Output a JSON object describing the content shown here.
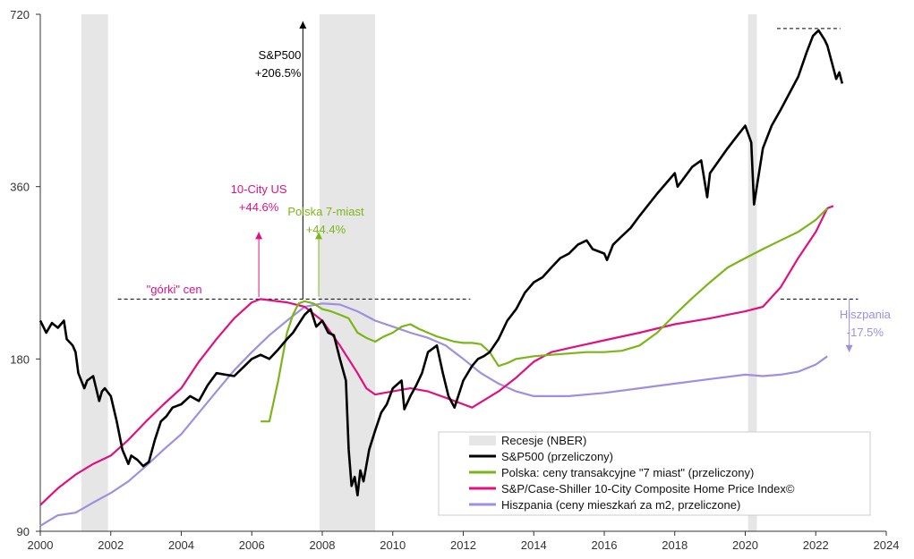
{
  "colors": {
    "sp500": "#000000",
    "poland": "#7cb518",
    "cs10": "#e0117f",
    "spain": "#a08fe0",
    "recession": "#e6e6e6",
    "axis": "#333333"
  },
  "chart_data": {
    "type": "line",
    "x_axis": {
      "range": [
        2000,
        2024
      ],
      "ticks": [
        "2000",
        "2002",
        "2004",
        "2006",
        "2008",
        "2010",
        "2012",
        "2014",
        "2016",
        "2018",
        "2020",
        "2022",
        "2024"
      ]
    },
    "y_axis": {
      "scale": "log",
      "range": [
        90,
        720
      ],
      "ticks": [
        "90",
        "180",
        "360",
        "720"
      ]
    },
    "grid": false,
    "legend_position": "bottom-right",
    "recessions": [
      {
        "start": 2001.17,
        "end": 2001.92
      },
      {
        "start": 2007.92,
        "end": 2009.5
      },
      {
        "start": 2020.08,
        "end": 2020.33
      }
    ],
    "series": [
      {
        "name": "S&P500 (przeliczony)",
        "color": "#000000",
        "x": [
          2000.0,
          2000.17,
          2000.33,
          2000.5,
          2000.67,
          2000.75,
          2000.92,
          2001.0,
          2001.08,
          2001.25,
          2001.33,
          2001.5,
          2001.67,
          2001.75,
          2001.83,
          2002.0,
          2002.17,
          2002.33,
          2002.5,
          2002.58,
          2002.75,
          2002.92,
          2003.08,
          2003.25,
          2003.42,
          2003.58,
          2003.75,
          2004.0,
          2004.25,
          2004.5,
          2004.75,
          2005.0,
          2005.5,
          2006.0,
          2006.25,
          2006.5,
          2006.75,
          2007.0,
          2007.17,
          2007.5,
          2007.67,
          2007.83,
          2008.0,
          2008.17,
          2008.33,
          2008.5,
          2008.67,
          2008.75,
          2008.83,
          2008.92,
          2009.0,
          2009.08,
          2009.17,
          2009.33,
          2009.5,
          2009.67,
          2009.83,
          2010.0,
          2010.25,
          2010.33,
          2010.5,
          2010.67,
          2010.83,
          2011.0,
          2011.25,
          2011.42,
          2011.58,
          2011.75,
          2012.0,
          2012.25,
          2012.42,
          2012.58,
          2012.75,
          2013.0,
          2013.25,
          2013.5,
          2013.75,
          2014.0,
          2014.25,
          2014.5,
          2014.75,
          2015.0,
          2015.25,
          2015.5,
          2015.67,
          2016.0,
          2016.08,
          2016.25,
          2016.5,
          2016.75,
          2017.0,
          2017.5,
          2018.0,
          2018.08,
          2018.5,
          2018.75,
          2018.92,
          2019.0,
          2019.5,
          2019.75,
          2020.0,
          2020.17,
          2020.25,
          2020.5,
          2020.75,
          2021.0,
          2021.5,
          2021.75,
          2021.92,
          2022.08,
          2022.25,
          2022.33,
          2022.5,
          2022.58,
          2022.67,
          2022.75
        ],
        "values": [
          210,
          200,
          208,
          204,
          210,
          195,
          190,
          185,
          170,
          160,
          165,
          168,
          152,
          158,
          160,
          155,
          140,
          125,
          118,
          122,
          120,
          117,
          119,
          130,
          140,
          143,
          148,
          150,
          155,
          152,
          162,
          170,
          168,
          180,
          183,
          180,
          187,
          195,
          200,
          215,
          220,
          205,
          210,
          200,
          198,
          180,
          165,
          125,
          108,
          112,
          104,
          115,
          110,
          125,
          135,
          145,
          150,
          160,
          165,
          147,
          155,
          162,
          170,
          185,
          190,
          170,
          155,
          148,
          165,
          175,
          180,
          182,
          185,
          195,
          210,
          220,
          235,
          245,
          250,
          260,
          270,
          275,
          285,
          290,
          280,
          275,
          268,
          285,
          295,
          305,
          320,
          350,
          380,
          360,
          390,
          400,
          345,
          380,
          420,
          440,
          460,
          430,
          335,
          420,
          460,
          490,
          560,
          620,
          660,
          675,
          650,
          635,
          580,
          555,
          570,
          545
        ]
      },
      {
        "name": "Polska: ceny transakcyjne \"7 miast\" (przeliczony)",
        "color": "#7cb518",
        "x": [
          2006.25,
          2006.5,
          2006.75,
          2007.0,
          2007.17,
          2007.33,
          2007.5,
          2007.75,
          2008.0,
          2008.25,
          2008.5,
          2008.75,
          2009.0,
          2009.25,
          2009.5,
          2009.75,
          2010.0,
          2010.25,
          2010.5,
          2010.75,
          2011.0,
          2011.25,
          2011.5,
          2011.75,
          2012.0,
          2012.25,
          2012.5,
          2012.75,
          2013.0,
          2013.25,
          2013.5,
          2014.0,
          2014.5,
          2015.0,
          2015.5,
          2016.0,
          2016.5,
          2017.0,
          2017.5,
          2018.0,
          2018.5,
          2019.0,
          2019.5,
          2020.0,
          2020.5,
          2021.0,
          2021.5,
          2022.0,
          2022.33
        ],
        "values": [
          140,
          140,
          165,
          200,
          215,
          225,
          227,
          225,
          220,
          218,
          215,
          212,
          200,
          196,
          193,
          197,
          200,
          205,
          207,
          203,
          200,
          197,
          195,
          193,
          192,
          192,
          191,
          185,
          175,
          177,
          180,
          182,
          183,
          184,
          185,
          185,
          186,
          190,
          200,
          215,
          230,
          245,
          260,
          270,
          280,
          290,
          300,
          315,
          330
        ]
      },
      {
        "name": "S&P/Case-Shiller 10-City Composite Home Price Index©",
        "color": "#e0117f",
        "x": [
          2000.0,
          2000.5,
          2001.0,
          2001.5,
          2002.0,
          2002.5,
          2003.0,
          2003.5,
          2004.0,
          2004.5,
          2005.0,
          2005.5,
          2006.0,
          2006.25,
          2006.5,
          2007.0,
          2007.5,
          2008.0,
          2008.5,
          2009.0,
          2009.25,
          2009.5,
          2010.0,
          2010.5,
          2011.0,
          2011.5,
          2012.0,
          2012.25,
          2013.0,
          2013.5,
          2014.0,
          2014.5,
          2015.0,
          2016.0,
          2017.0,
          2018.0,
          2019.0,
          2019.5,
          2020.0,
          2020.5,
          2021.0,
          2021.5,
          2022.0,
          2022.33,
          2022.5
        ],
        "values": [
          100,
          107,
          113,
          118,
          122,
          130,
          140,
          150,
          160,
          178,
          195,
          212,
          226,
          229,
          228,
          226,
          222,
          210,
          190,
          170,
          160,
          156,
          158,
          160,
          158,
          154,
          150,
          148,
          158,
          167,
          178,
          185,
          188,
          194,
          200,
          207,
          212,
          215,
          218,
          222,
          240,
          270,
          300,
          330,
          333
        ]
      },
      {
        "name": "Hiszpania (ceny mieszkań za m2, przeliczone)",
        "color": "#a08fe0",
        "x": [
          2000.0,
          2000.25,
          2000.5,
          2001.0,
          2001.5,
          2002.0,
          2002.5,
          2003.0,
          2003.5,
          2004.0,
          2004.5,
          2005.0,
          2005.5,
          2006.0,
          2006.5,
          2007.0,
          2007.5,
          2008.0,
          2008.5,
          2009.0,
          2009.5,
          2010.0,
          2010.5,
          2011.0,
          2011.5,
          2012.0,
          2012.5,
          2013.0,
          2013.5,
          2014.0,
          2014.5,
          2015.0,
          2016.0,
          2017.0,
          2018.0,
          2019.0,
          2020.0,
          2020.5,
          2021.0,
          2021.5,
          2022.0,
          2022.33
        ],
        "values": [
          92,
          94,
          96,
          97,
          101,
          105,
          110,
          117,
          125,
          133,
          145,
          158,
          172,
          185,
          198,
          210,
          222,
          225,
          224,
          218,
          210,
          205,
          200,
          196,
          190,
          180,
          170,
          163,
          158,
          155,
          155,
          155,
          157,
          160,
          163,
          166,
          169,
          168,
          169,
          171,
          176,
          182
        ]
      }
    ],
    "annotations": [
      {
        "lines": [
          "S&P500",
          "+206.5%"
        ],
        "color": "#000000"
      },
      {
        "lines": [
          "10-City US",
          "+44.6%"
        ],
        "color": "#e0117f"
      },
      {
        "lines": [
          "Polska 7-miast",
          "+44.4%"
        ],
        "color": "#7cb518"
      },
      {
        "lines": [
          "\"górki\" cen"
        ],
        "color": "#e0117f"
      },
      {
        "lines": [
          "Hiszpania",
          "-17.5%"
        ],
        "color": "#a08fe0"
      }
    ],
    "legend": [
      {
        "label": "Recesje (NBER)",
        "kind": "box",
        "color": "#e6e6e6"
      },
      {
        "label": "S&P500 (przeliczony)",
        "kind": "line",
        "color": "#000000"
      },
      {
        "label": "Polska: ceny transakcyjne \"7 miast\" (przeliczony)",
        "kind": "line",
        "color": "#7cb518"
      },
      {
        "label": "S&P/Case-Shiller 10-City Composite Home Price Index©",
        "kind": "line",
        "color": "#e0117f"
      },
      {
        "label": "Hiszpania (ceny mieszkań za m2, przeliczone)",
        "kind": "line",
        "color": "#a08fe0"
      }
    ]
  }
}
